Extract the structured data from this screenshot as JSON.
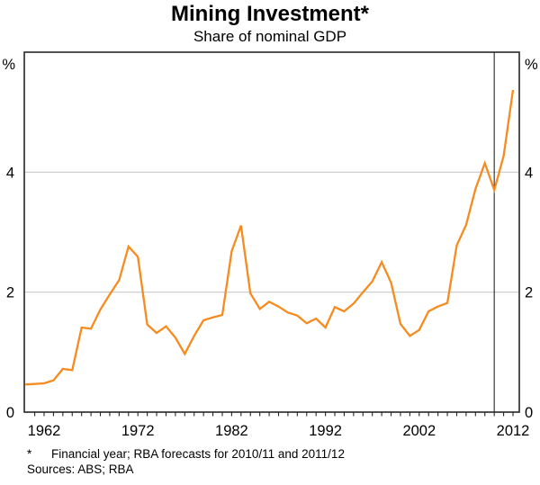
{
  "header": {
    "title": "Mining Investment*",
    "subtitle": "Share of nominal GDP"
  },
  "chart_data": {
    "type": "line",
    "title": "Mining Investment*",
    "subtitle": "Share of nominal GDP",
    "unit_label": "%",
    "ylabel": "%",
    "ylim": [
      0,
      6
    ],
    "y_gridlines": [
      2,
      4
    ],
    "y_tick_labels": [
      {
        "value": 0,
        "label": "0"
      },
      {
        "value": 2,
        "label": "2"
      },
      {
        "value": 4,
        "label": "4"
      }
    ],
    "x_labeled_years": [
      1962,
      1972,
      1982,
      1992,
      2002,
      2012
    ],
    "x_minor_tick_start": 1961,
    "x_minor_tick_end": 2012,
    "forecast_divider_year": 2010,
    "grid": "horizontal",
    "legend_position": "none",
    "line_color": "#f68b1f",
    "x": [
      1960,
      1961,
      1962,
      1963,
      1964,
      1965,
      1966,
      1967,
      1968,
      1969,
      1970,
      1971,
      1972,
      1973,
      1974,
      1975,
      1976,
      1977,
      1978,
      1979,
      1980,
      1981,
      1982,
      1983,
      1984,
      1985,
      1986,
      1987,
      1988,
      1989,
      1990,
      1991,
      1992,
      1993,
      1994,
      1995,
      1996,
      1997,
      1998,
      1999,
      2000,
      2001,
      2002,
      2003,
      2004,
      2005,
      2006,
      2007,
      2008,
      2009,
      2010,
      2011,
      2012
    ],
    "series": [
      {
        "name": "Mining investment share of nominal GDP",
        "values": [
          0.46,
          0.47,
          0.48,
          0.53,
          0.72,
          0.7,
          1.41,
          1.39,
          1.71,
          1.96,
          2.2,
          2.76,
          2.59,
          1.46,
          1.32,
          1.43,
          1.24,
          0.97,
          1.27,
          1.53,
          1.58,
          1.62,
          2.68,
          3.11,
          1.98,
          1.72,
          1.84,
          1.76,
          1.66,
          1.61,
          1.48,
          1.56,
          1.41,
          1.75,
          1.68,
          1.81,
          2.0,
          2.18,
          2.5,
          2.16,
          1.47,
          1.27,
          1.37,
          1.68,
          1.76,
          1.82,
          2.78,
          3.12,
          3.72,
          4.15,
          3.7,
          4.27,
          5.37
        ]
      }
    ]
  },
  "footnotes": {
    "marker": "*",
    "note": "Financial year; RBA forecasts for 2010/11 and 2011/12",
    "sources": "Sources: ABS; RBA"
  }
}
